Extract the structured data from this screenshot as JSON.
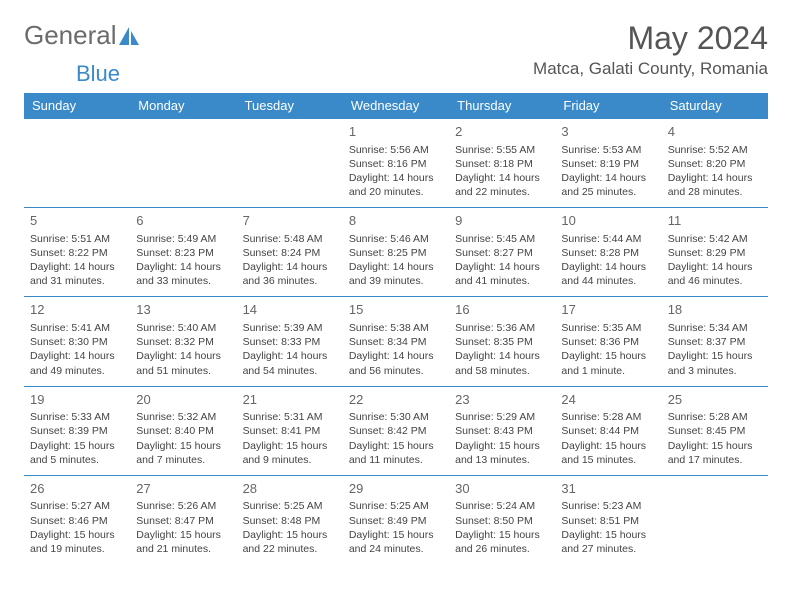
{
  "brand": {
    "name1": "General",
    "name2": "Blue"
  },
  "title": "May 2024",
  "location": "Matca, Galati County, Romania",
  "colors": {
    "accent": "#3a8ac9",
    "text": "#444",
    "muted": "#666",
    "bg": "#ffffff"
  },
  "weekday_labels": [
    "Sunday",
    "Monday",
    "Tuesday",
    "Wednesday",
    "Thursday",
    "Friday",
    "Saturday"
  ],
  "weeks": [
    [
      null,
      null,
      null,
      {
        "d": "1",
        "sr": "5:56 AM",
        "ss": "8:16 PM",
        "dl": "14 hours and 20 minutes."
      },
      {
        "d": "2",
        "sr": "5:55 AM",
        "ss": "8:18 PM",
        "dl": "14 hours and 22 minutes."
      },
      {
        "d": "3",
        "sr": "5:53 AM",
        "ss": "8:19 PM",
        "dl": "14 hours and 25 minutes."
      },
      {
        "d": "4",
        "sr": "5:52 AM",
        "ss": "8:20 PM",
        "dl": "14 hours and 28 minutes."
      }
    ],
    [
      {
        "d": "5",
        "sr": "5:51 AM",
        "ss": "8:22 PM",
        "dl": "14 hours and 31 minutes."
      },
      {
        "d": "6",
        "sr": "5:49 AM",
        "ss": "8:23 PM",
        "dl": "14 hours and 33 minutes."
      },
      {
        "d": "7",
        "sr": "5:48 AM",
        "ss": "8:24 PM",
        "dl": "14 hours and 36 minutes."
      },
      {
        "d": "8",
        "sr": "5:46 AM",
        "ss": "8:25 PM",
        "dl": "14 hours and 39 minutes."
      },
      {
        "d": "9",
        "sr": "5:45 AM",
        "ss": "8:27 PM",
        "dl": "14 hours and 41 minutes."
      },
      {
        "d": "10",
        "sr": "5:44 AM",
        "ss": "8:28 PM",
        "dl": "14 hours and 44 minutes."
      },
      {
        "d": "11",
        "sr": "5:42 AM",
        "ss": "8:29 PM",
        "dl": "14 hours and 46 minutes."
      }
    ],
    [
      {
        "d": "12",
        "sr": "5:41 AM",
        "ss": "8:30 PM",
        "dl": "14 hours and 49 minutes."
      },
      {
        "d": "13",
        "sr": "5:40 AM",
        "ss": "8:32 PM",
        "dl": "14 hours and 51 minutes."
      },
      {
        "d": "14",
        "sr": "5:39 AM",
        "ss": "8:33 PM",
        "dl": "14 hours and 54 minutes."
      },
      {
        "d": "15",
        "sr": "5:38 AM",
        "ss": "8:34 PM",
        "dl": "14 hours and 56 minutes."
      },
      {
        "d": "16",
        "sr": "5:36 AM",
        "ss": "8:35 PM",
        "dl": "14 hours and 58 minutes."
      },
      {
        "d": "17",
        "sr": "5:35 AM",
        "ss": "8:36 PM",
        "dl": "15 hours and 1 minute."
      },
      {
        "d": "18",
        "sr": "5:34 AM",
        "ss": "8:37 PM",
        "dl": "15 hours and 3 minutes."
      }
    ],
    [
      {
        "d": "19",
        "sr": "5:33 AM",
        "ss": "8:39 PM",
        "dl": "15 hours and 5 minutes."
      },
      {
        "d": "20",
        "sr": "5:32 AM",
        "ss": "8:40 PM",
        "dl": "15 hours and 7 minutes."
      },
      {
        "d": "21",
        "sr": "5:31 AM",
        "ss": "8:41 PM",
        "dl": "15 hours and 9 minutes."
      },
      {
        "d": "22",
        "sr": "5:30 AM",
        "ss": "8:42 PM",
        "dl": "15 hours and 11 minutes."
      },
      {
        "d": "23",
        "sr": "5:29 AM",
        "ss": "8:43 PM",
        "dl": "15 hours and 13 minutes."
      },
      {
        "d": "24",
        "sr": "5:28 AM",
        "ss": "8:44 PM",
        "dl": "15 hours and 15 minutes."
      },
      {
        "d": "25",
        "sr": "5:28 AM",
        "ss": "8:45 PM",
        "dl": "15 hours and 17 minutes."
      }
    ],
    [
      {
        "d": "26",
        "sr": "5:27 AM",
        "ss": "8:46 PM",
        "dl": "15 hours and 19 minutes."
      },
      {
        "d": "27",
        "sr": "5:26 AM",
        "ss": "8:47 PM",
        "dl": "15 hours and 21 minutes."
      },
      {
        "d": "28",
        "sr": "5:25 AM",
        "ss": "8:48 PM",
        "dl": "15 hours and 22 minutes."
      },
      {
        "d": "29",
        "sr": "5:25 AM",
        "ss": "8:49 PM",
        "dl": "15 hours and 24 minutes."
      },
      {
        "d": "30",
        "sr": "5:24 AM",
        "ss": "8:50 PM",
        "dl": "15 hours and 26 minutes."
      },
      {
        "d": "31",
        "sr": "5:23 AM",
        "ss": "8:51 PM",
        "dl": "15 hours and 27 minutes."
      },
      null
    ]
  ],
  "labels": {
    "sunrise": "Sunrise:",
    "sunset": "Sunset:",
    "daylight": "Daylight:"
  }
}
